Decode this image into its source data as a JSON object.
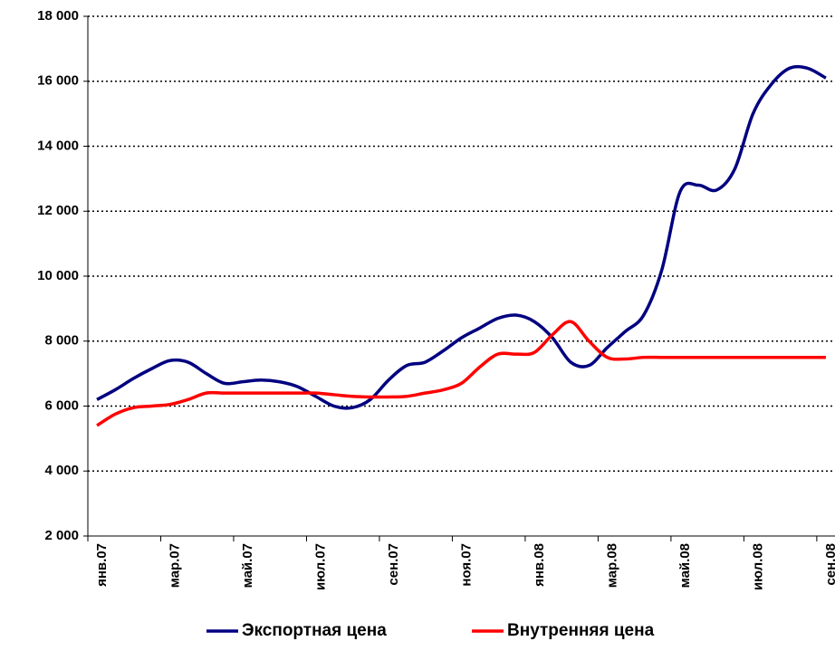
{
  "chart_data": {
    "type": "line",
    "categories": [
      "янв.07",
      null,
      null,
      null,
      "мар.07",
      null,
      null,
      null,
      "май.07",
      null,
      null,
      null,
      "июл.07",
      null,
      null,
      null,
      "сен.07",
      null,
      null,
      null,
      "ноя.07",
      null,
      null,
      null,
      "янв.08",
      null,
      null,
      null,
      "мар.08",
      null,
      null,
      null,
      "май.08",
      null,
      null,
      null,
      "июл.08",
      null,
      null,
      null,
      "сен.08"
    ],
    "series": [
      {
        "name": "Экспортная цена",
        "color": "#000080",
        "values": [
          6200,
          6500,
          6850,
          7150,
          7400,
          7350,
          7000,
          6700,
          6750,
          6800,
          6750,
          6600,
          6300,
          6000,
          5950,
          6200,
          6800,
          7250,
          7350,
          7700,
          8100,
          8400,
          8700,
          8800,
          8600,
          8100,
          7350,
          7250,
          7800,
          8300,
          8800,
          10200,
          12600,
          12800,
          12650,
          13300,
          15000,
          15900,
          16400,
          16400,
          16100
        ]
      },
      {
        "name": "Внутренняя цена",
        "color": "#ff0000",
        "values": [
          5400,
          5750,
          5950,
          6000,
          6050,
          6200,
          6400,
          6400,
          6400,
          6400,
          6400,
          6400,
          6400,
          6350,
          6300,
          6280,
          6280,
          6300,
          6400,
          6500,
          6700,
          7200,
          7600,
          7600,
          7650,
          8200,
          8600,
          8000,
          7500,
          7450,
          7500,
          7500,
          7500,
          7500,
          7500,
          7500,
          7500,
          7500,
          7500,
          7500,
          7500
        ]
      }
    ],
    "ylim": [
      2000,
      18000
    ],
    "yticks": [
      {
        "value": 2000,
        "label": "2 000"
      },
      {
        "value": 4000,
        "label": "4 000"
      },
      {
        "value": 6000,
        "label": "6 000"
      },
      {
        "value": 8000,
        "label": "8 000"
      },
      {
        "value": 10000,
        "label": "10 000"
      },
      {
        "value": 12000,
        "label": "12 000"
      },
      {
        "value": 14000,
        "label": "14 000"
      },
      {
        "value": 16000,
        "label": "16 000"
      },
      {
        "value": 18000,
        "label": "18 000"
      }
    ],
    "grid": true,
    "legend": "bottom"
  }
}
